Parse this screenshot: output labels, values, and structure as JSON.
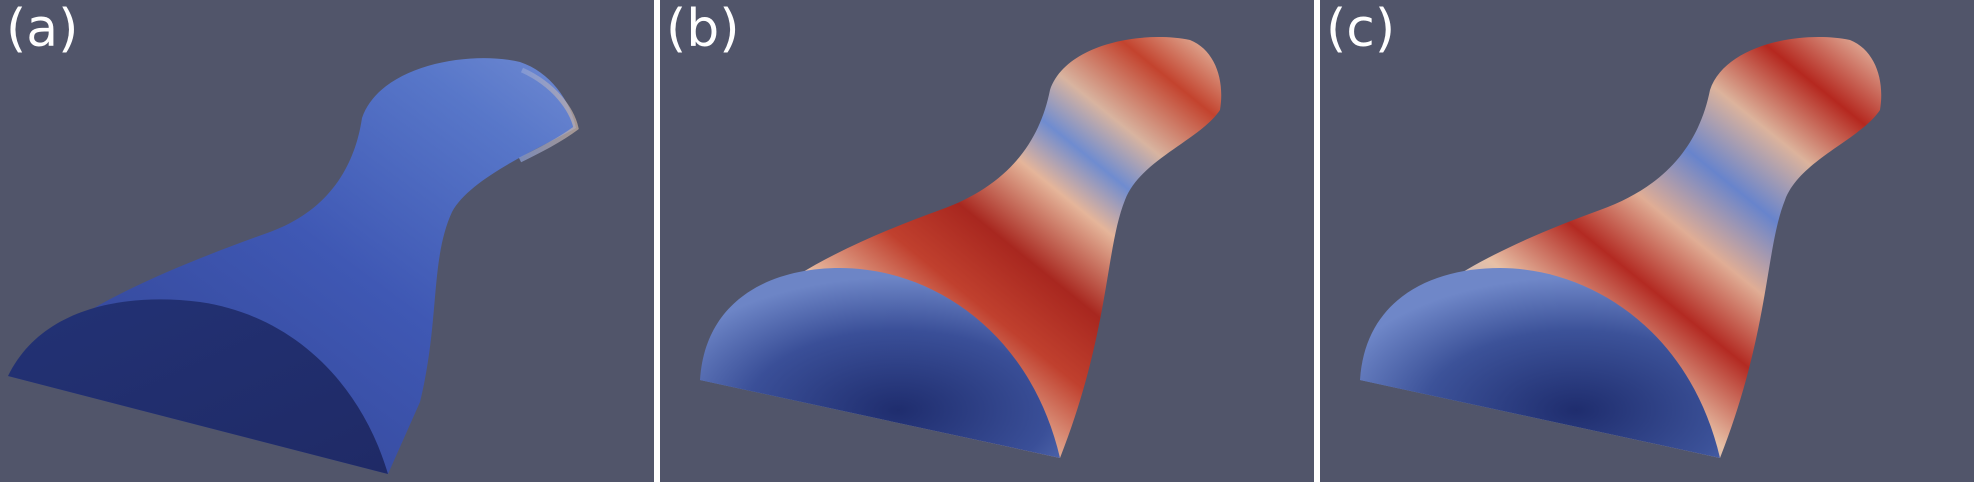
{
  "figure": {
    "background_color": "#51556a",
    "separator_color": "#ffffff",
    "panels": [
      {
        "label": "(a)",
        "colormap_range": "uniform-blue"
      },
      {
        "label": "(b)",
        "colormap_range": "blue-white-red"
      },
      {
        "label": "(c)",
        "colormap_range": "blue-white-red"
      }
    ]
  }
}
